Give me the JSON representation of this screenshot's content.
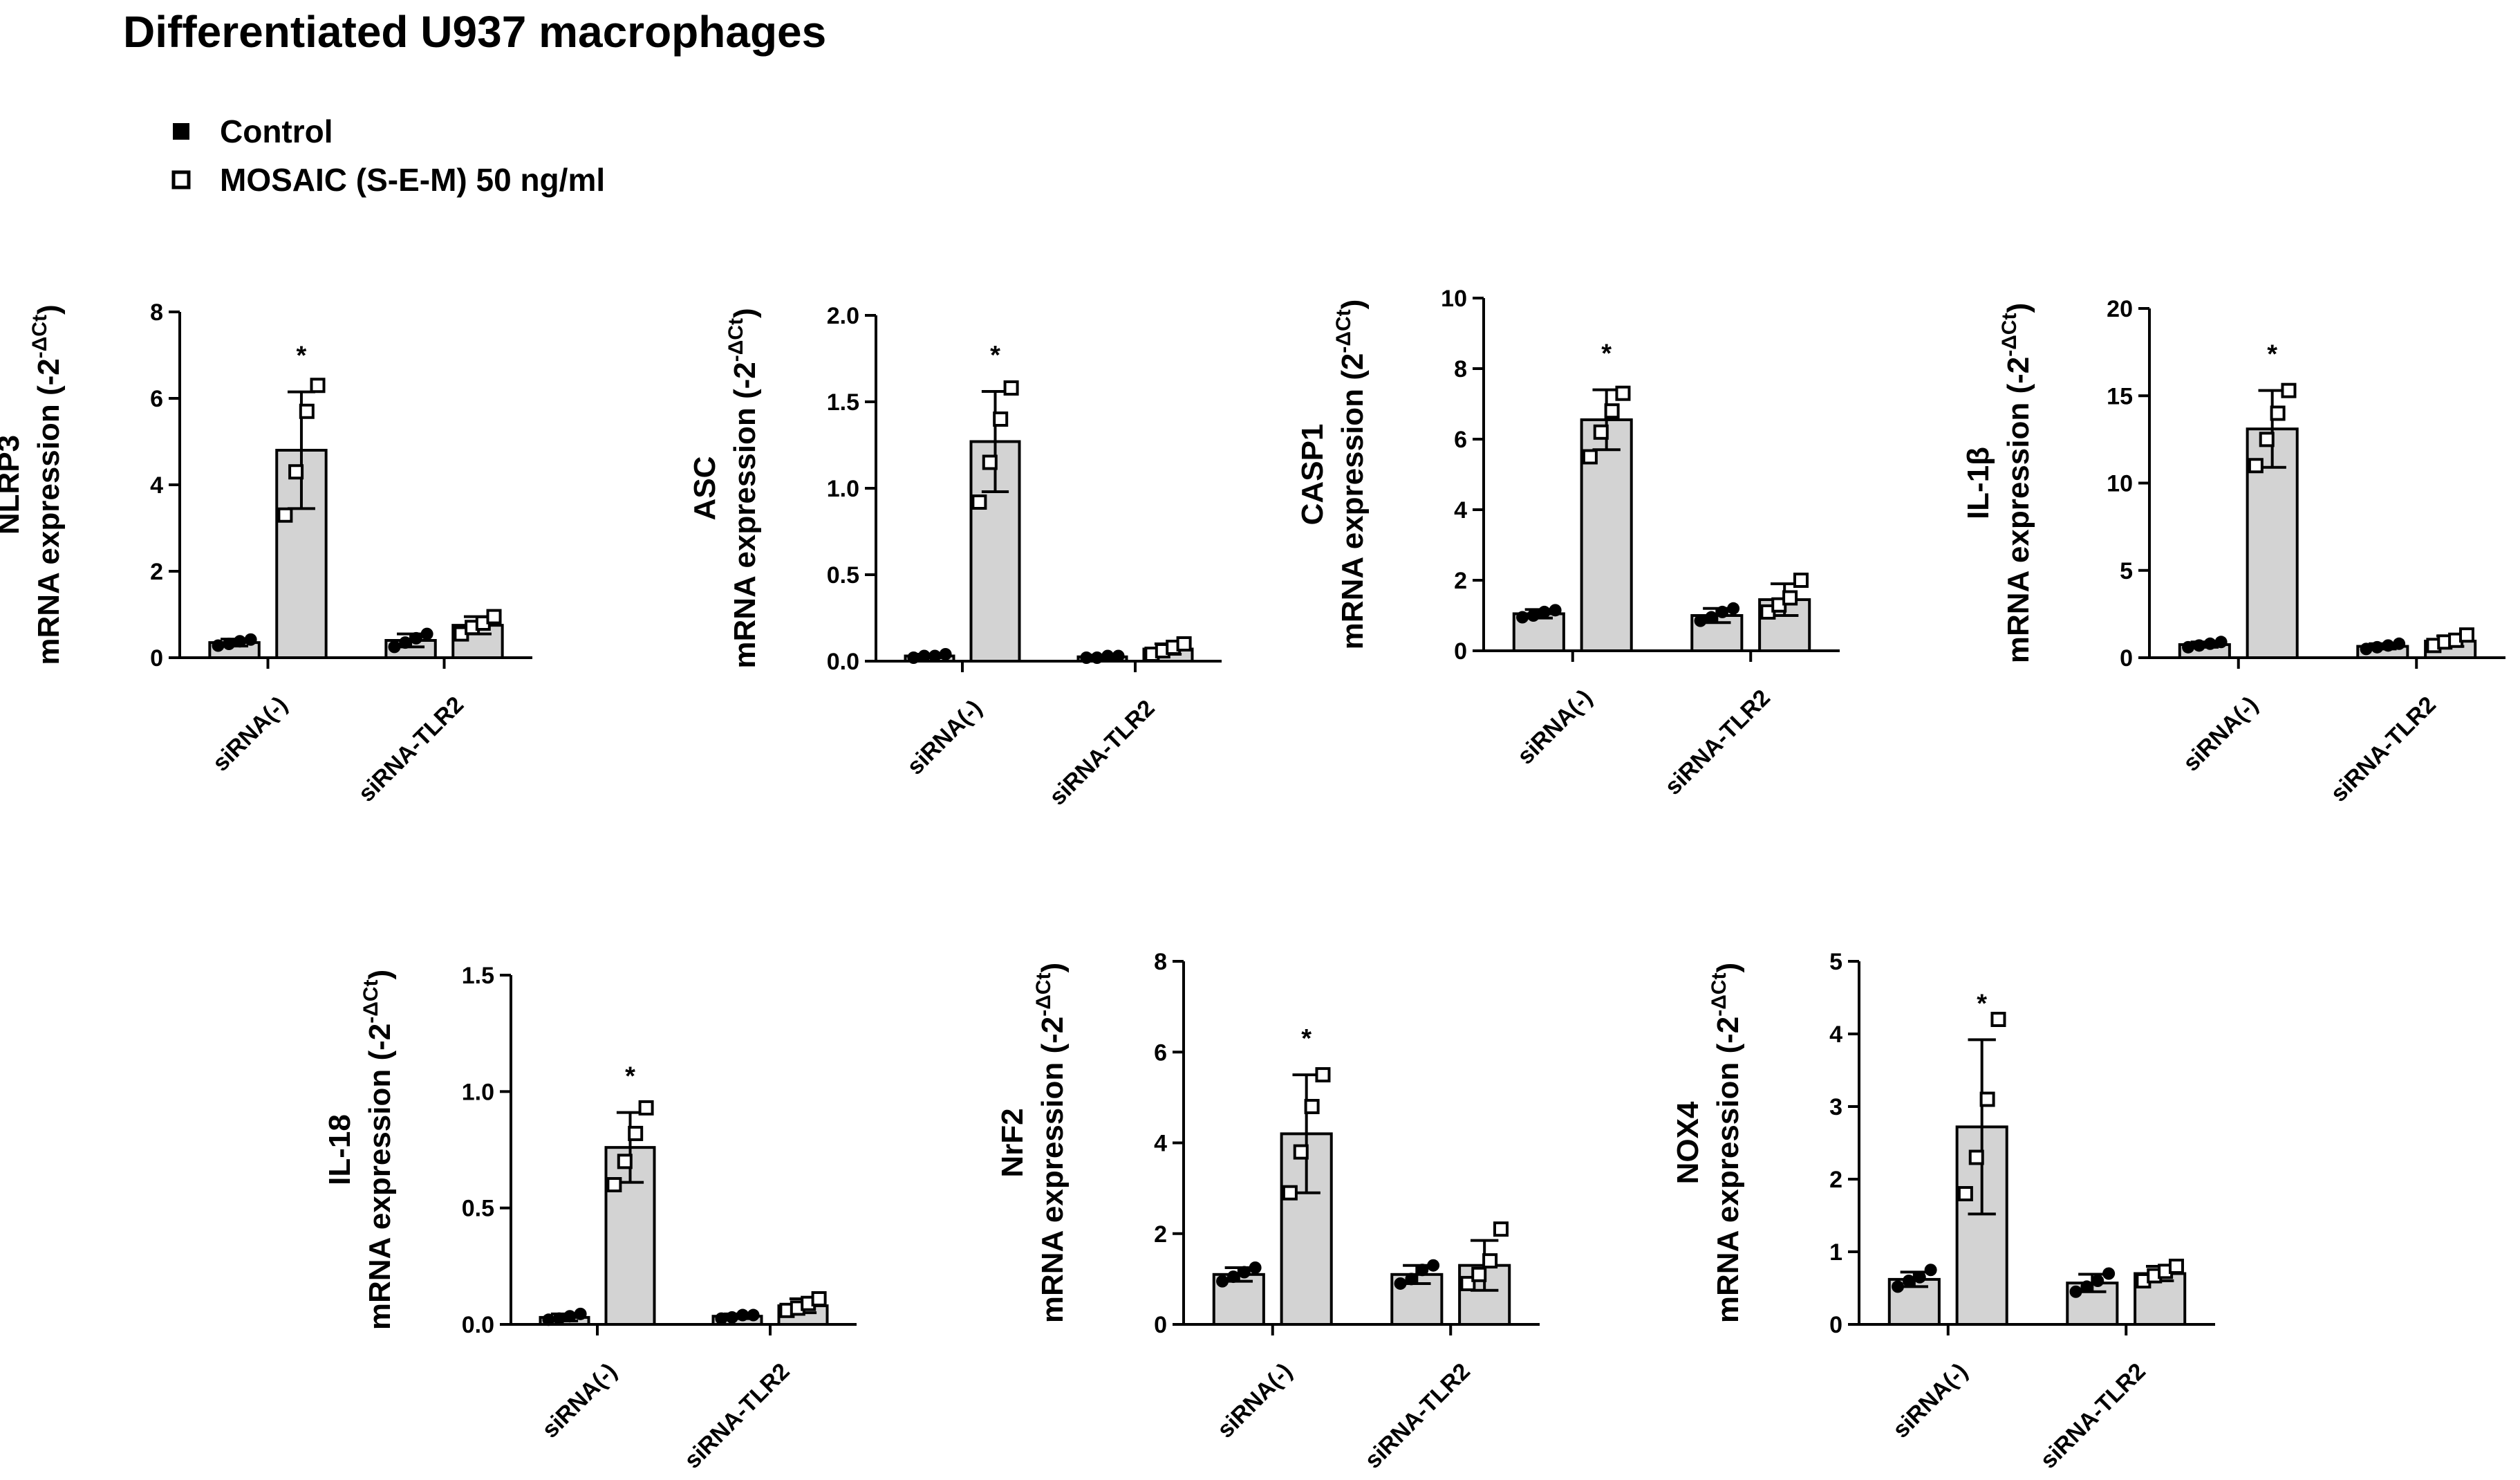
{
  "title": "Differentiated U937 macrophages",
  "legend": [
    {
      "label": "Control",
      "marker": "filled-square"
    },
    {
      "label": "MOSAIC (S-E-M) 50 ng/ml",
      "marker": "open-square"
    }
  ],
  "colors": {
    "bar_fill": "#d3d3d3",
    "stroke": "#000000",
    "background": "#ffffff"
  },
  "significance_marker": "*",
  "chart_data": [
    {
      "type": "bar",
      "gene": "NLRP3",
      "ylabel": "mRNA expression (-2",
      "ylabel_sup": "-ΔCt",
      "ylabel_close": ")",
      "categories": [
        "siRNA(-)",
        "siRNA-TLR2"
      ],
      "series": [
        {
          "name": "Control",
          "values": [
            0.35,
            0.4
          ],
          "sd": [
            0.08,
            0.15
          ],
          "points": [
            [
              0.28,
              0.32,
              0.38,
              0.42
            ],
            [
              0.25,
              0.35,
              0.45,
              0.55
            ]
          ]
        },
        {
          "name": "MOSAIC (S-E-M) 50 ng/ml",
          "values": [
            4.8,
            0.75
          ],
          "sd": [
            1.35,
            0.2
          ],
          "points": [
            [
              3.3,
              4.3,
              5.7,
              6.3
            ],
            [
              0.55,
              0.7,
              0.8,
              0.95
            ]
          ]
        }
      ],
      "ylim": [
        0,
        8
      ],
      "yticks": [
        "0",
        "2",
        "4",
        "6",
        "8"
      ],
      "significant": [
        false,
        true,
        false,
        false
      ]
    },
    {
      "type": "bar",
      "gene": "ASC",
      "ylabel": "mRNA expression (-2",
      "ylabel_sup": "-ΔCt",
      "ylabel_close": ")",
      "categories": [
        "siRNA(-)",
        "siRNA-TLR2"
      ],
      "series": [
        {
          "name": "Control",
          "values": [
            0.03,
            0.025
          ],
          "sd": [
            0.01,
            0.01
          ],
          "points": [
            [
              0.02,
              0.03,
              0.03,
              0.04
            ],
            [
              0.02,
              0.02,
              0.03,
              0.03
            ]
          ]
        },
        {
          "name": "MOSAIC (S-E-M) 50 ng/ml",
          "values": [
            1.27,
            0.07
          ],
          "sd": [
            0.29,
            0.03
          ],
          "points": [
            [
              0.92,
              1.15,
              1.4,
              1.58
            ],
            [
              0.04,
              0.06,
              0.08,
              0.1
            ]
          ]
        }
      ],
      "ylim": [
        0,
        2.0
      ],
      "yticks": [
        "0.0",
        "0.5",
        "1.0",
        "1.5",
        "2.0"
      ],
      "significant": [
        false,
        true,
        false,
        false
      ]
    },
    {
      "type": "bar",
      "gene": "CASP1",
      "ylabel": "mRNA expression (2",
      "ylabel_sup": "-ΔCt",
      "ylabel_close": ")",
      "categories": [
        "siRNA(-)",
        "siRNA-TLR2"
      ],
      "series": [
        {
          "name": "Control",
          "values": [
            1.05,
            1.0
          ],
          "sd": [
            0.12,
            0.2
          ],
          "points": [
            [
              0.95,
              1.0,
              1.1,
              1.15
            ],
            [
              0.85,
              0.95,
              1.1,
              1.2
            ]
          ]
        },
        {
          "name": "MOSAIC (S-E-M) 50 ng/ml",
          "values": [
            6.55,
            1.45
          ],
          "sd": [
            0.85,
            0.45
          ],
          "points": [
            [
              5.5,
              6.2,
              6.8,
              7.3
            ],
            [
              1.1,
              1.3,
              1.5,
              2.0
            ]
          ]
        }
      ],
      "ylim": [
        0,
        10
      ],
      "yticks": [
        "0",
        "2",
        "4",
        "6",
        "8",
        "10"
      ],
      "significant": [
        false,
        true,
        false,
        false
      ]
    },
    {
      "type": "bar",
      "gene": "IL-1β",
      "ylabel": "mRNA expression (-2",
      "ylabel_sup": "-ΔCt",
      "ylabel_close": ")",
      "categories": [
        "siRNA(-)",
        "siRNA-TLR2"
      ],
      "series": [
        {
          "name": "Control",
          "values": [
            0.75,
            0.65
          ],
          "sd": [
            0.15,
            0.15
          ],
          "points": [
            [
              0.6,
              0.7,
              0.8,
              0.9
            ],
            [
              0.5,
              0.6,
              0.7,
              0.8
            ]
          ]
        },
        {
          "name": "MOSAIC (S-E-M) 50 ng/ml",
          "values": [
            13.1,
            0.95
          ],
          "sd": [
            2.2,
            0.3
          ],
          "points": [
            [
              11.0,
              12.5,
              14.0,
              15.3
            ],
            [
              0.7,
              0.9,
              1.0,
              1.3
            ]
          ]
        }
      ],
      "ylim": [
        0,
        20
      ],
      "yticks": [
        "0",
        "5",
        "10",
        "15",
        "20"
      ],
      "significant": [
        false,
        true,
        false,
        false
      ]
    },
    {
      "type": "bar",
      "gene": "IL-18",
      "ylabel": "mRNA expression (-2",
      "ylabel_sup": "-ΔCt",
      "ylabel_close": ")",
      "categories": [
        "siRNA(-)",
        "siRNA-TLR2"
      ],
      "series": [
        {
          "name": "Control",
          "values": [
            0.03,
            0.035
          ],
          "sd": [
            0.015,
            0.01
          ],
          "points": [
            [
              0.02,
              0.025,
              0.035,
              0.045
            ],
            [
              0.025,
              0.03,
              0.04,
              0.04
            ]
          ]
        },
        {
          "name": "MOSAIC (S-E-M) 50 ng/ml",
          "values": [
            0.76,
            0.08
          ],
          "sd": [
            0.15,
            0.03
          ],
          "points": [
            [
              0.6,
              0.7,
              0.82,
              0.93
            ],
            [
              0.06,
              0.07,
              0.09,
              0.11
            ]
          ]
        }
      ],
      "ylim": [
        0,
        1.5
      ],
      "yticks": [
        "0.0",
        "0.5",
        "1.0",
        "1.5"
      ],
      "significant": [
        false,
        true,
        false,
        false
      ]
    },
    {
      "type": "bar",
      "gene": "NrF2",
      "ylabel": "mRNA expression (-2",
      "ylabel_sup": "-ΔCt",
      "ylabel_close": ")",
      "categories": [
        "siRNA(-)",
        "siRNA-TLR2"
      ],
      "series": [
        {
          "name": "Control",
          "values": [
            1.1,
            1.1
          ],
          "sd": [
            0.15,
            0.2
          ],
          "points": [
            [
              0.95,
              1.05,
              1.15,
              1.25
            ],
            [
              0.9,
              1.0,
              1.2,
              1.3
            ]
          ]
        },
        {
          "name": "MOSAIC (S-E-M) 50 ng/ml",
          "values": [
            4.2,
            1.3
          ],
          "sd": [
            1.3,
            0.55
          ],
          "points": [
            [
              2.9,
              3.8,
              4.8,
              5.5
            ],
            [
              0.9,
              1.1,
              1.4,
              2.1
            ]
          ]
        }
      ],
      "ylim": [
        0,
        8
      ],
      "yticks": [
        "0",
        "2",
        "4",
        "6",
        "8"
      ],
      "significant": [
        false,
        true,
        false,
        false
      ]
    },
    {
      "type": "bar",
      "gene": "NOX4",
      "ylabel": "mRNA expression (-2",
      "ylabel_sup": "-ΔCt",
      "ylabel_close": ")",
      "categories": [
        "siRNA(-)",
        "siRNA-TLR2"
      ],
      "series": [
        {
          "name": "Control",
          "values": [
            0.62,
            0.57
          ],
          "sd": [
            0.1,
            0.12
          ],
          "points": [
            [
              0.52,
              0.6,
              0.65,
              0.75
            ],
            [
              0.45,
              0.52,
              0.6,
              0.7
            ]
          ]
        },
        {
          "name": "MOSAIC (S-E-M) 50 ng/ml",
          "values": [
            2.72,
            0.7
          ],
          "sd": [
            1.2,
            0.1
          ],
          "points": [
            [
              1.8,
              2.3,
              3.1,
              4.2
            ],
            [
              0.6,
              0.67,
              0.73,
              0.8
            ]
          ]
        }
      ],
      "ylim": [
        0,
        5
      ],
      "yticks": [
        "0",
        "1",
        "2",
        "3",
        "4",
        "5"
      ],
      "significant": [
        false,
        true,
        false,
        false
      ]
    }
  ]
}
